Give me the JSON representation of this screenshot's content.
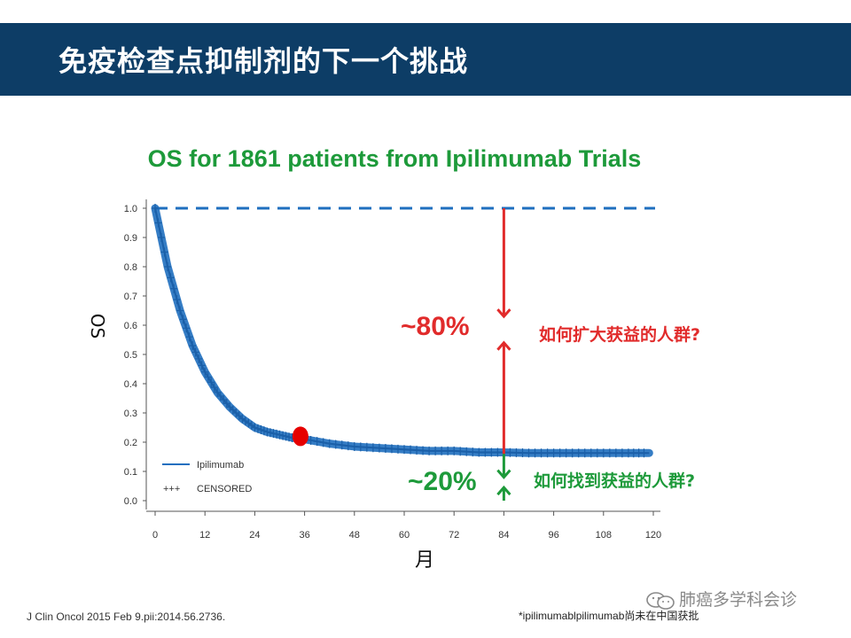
{
  "header": {
    "title": "免疫检查点抑制剂的下一个挑战"
  },
  "chart_data": {
    "type": "line",
    "title": "OS for 1861 patients from Ipilimumab Trials",
    "xlabel": "月",
    "ylabel": "OS",
    "xlim": [
      0,
      120
    ],
    "ylim": [
      0,
      1.0
    ],
    "xticks": [
      "0",
      "12",
      "24",
      "36",
      "48",
      "60",
      "72",
      "84",
      "96",
      "108",
      "120"
    ],
    "yticks": [
      "0.0",
      "0.1",
      "0.2",
      "0.3",
      "0.4",
      "0.5",
      "0.6",
      "0.7",
      "0.8",
      "0.9",
      "1.0"
    ],
    "grid": false,
    "legend_position": "bottom-left",
    "series": [
      {
        "name": "Ipilimumab",
        "color": "#1f6fbf",
        "x": [
          0,
          3,
          6,
          9,
          12,
          15,
          18,
          21,
          24,
          27,
          30,
          33,
          36,
          42,
          48,
          54,
          60,
          66,
          72,
          78,
          84,
          90,
          96,
          102,
          108,
          114,
          119
        ],
        "y": [
          1.0,
          0.8,
          0.65,
          0.53,
          0.44,
          0.37,
          0.32,
          0.28,
          0.25,
          0.235,
          0.225,
          0.215,
          0.21,
          0.195,
          0.185,
          0.18,
          0.175,
          0.17,
          0.17,
          0.165,
          0.165,
          0.163,
          0.163,
          0.163,
          0.163,
          0.163,
          0.163
        ]
      }
    ],
    "legend": [
      "Ipilimumab",
      "CENSORED"
    ],
    "censored_marker": "+++",
    "annotations": {
      "reference_line_y": 1.0,
      "highlight_point": {
        "x": 35,
        "y": 0.22,
        "color": "#e60000"
      },
      "arrow_x": 84,
      "upper_label": "~80%",
      "lower_label": "~20%",
      "upper_question": "如何扩大获益的人群?",
      "lower_question": "如何找到获益的人群?",
      "upper_color": "#e12b2b",
      "lower_color": "#1d9a3a"
    }
  },
  "citation": "J Clin Oncol 2015 Feb 9.pii:2014.56.2736.",
  "footnote": "*ipilimumablpilimumab尚未在中国获批",
  "watermark": {
    "text": "肺癌多学科会诊",
    "icon": "wechat-icon"
  }
}
